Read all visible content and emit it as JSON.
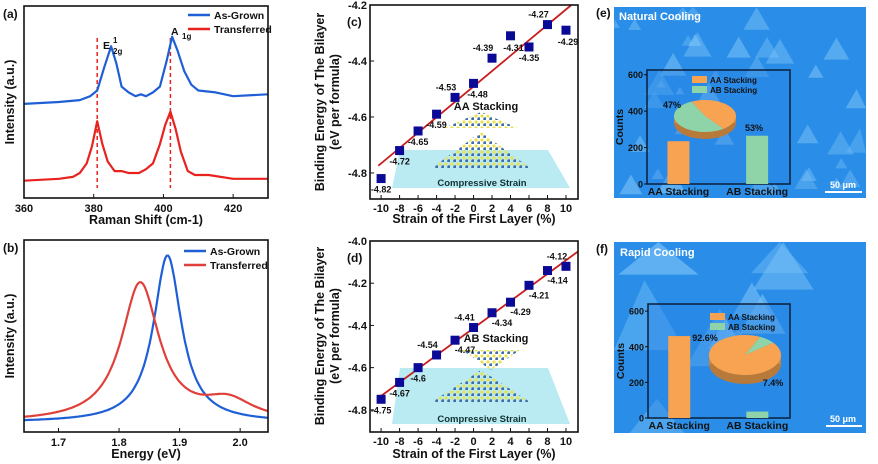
{
  "chart_data": [
    {
      "panel": "(a)",
      "type": "line",
      "xlabel": "Raman Shift (cm-1)",
      "ylabel": "Intensity (a.u.)",
      "xlim": [
        360,
        430
      ],
      "ylim": [
        0,
        1
      ],
      "xticks": [
        "360",
        "380",
        "400",
        "420"
      ],
      "peak_labels": {
        "e2g": "E",
        "e2g_sup": "1",
        "e2g_sub": "2g",
        "a1g": "A",
        "a1g_sub": "1g"
      },
      "reference_lines_x": [
        381,
        402
      ],
      "legend": [
        "As-Grown",
        "Transferred"
      ],
      "legend_position": "top-right",
      "series": [
        {
          "name": "As-Grown",
          "color": "#1f5fd6",
          "x": [
            360,
            370,
            376,
            379,
            381,
            383,
            385,
            386.5,
            388,
            390,
            392,
            393.5,
            395,
            397,
            399,
            401,
            402.5,
            404,
            406,
            408,
            410,
            415,
            420,
            430
          ],
          "y": [
            0.49,
            0.5,
            0.51,
            0.53,
            0.56,
            0.68,
            0.79,
            0.7,
            0.58,
            0.55,
            0.53,
            0.54,
            0.53,
            0.55,
            0.58,
            0.72,
            0.84,
            0.77,
            0.66,
            0.59,
            0.56,
            0.55,
            0.53,
            0.54
          ]
        },
        {
          "name": "Transferred",
          "color": "#e8231f",
          "x": [
            360,
            370,
            374,
            376,
            378,
            379.5,
            381,
            382.5,
            384,
            386,
            388,
            390,
            393,
            395,
            397,
            399,
            400.5,
            402,
            403.5,
            405,
            407,
            409,
            413,
            420,
            430
          ],
          "y": [
            0.09,
            0.1,
            0.11,
            0.13,
            0.18,
            0.27,
            0.4,
            0.28,
            0.19,
            0.14,
            0.14,
            0.13,
            0.13,
            0.15,
            0.18,
            0.28,
            0.38,
            0.45,
            0.36,
            0.24,
            0.14,
            0.12,
            0.12,
            0.1,
            0.1
          ]
        }
      ]
    },
    {
      "panel": "(b)",
      "type": "line",
      "xlabel": "Energy (eV)",
      "ylabel": "Intensity (a.u.)",
      "xlim": [
        1.643,
        2.046
      ],
      "ylim": [
        0,
        1
      ],
      "xticks": [
        "1.7",
        "1.8",
        "1.9",
        "2.0"
      ],
      "legend": [
        "As-Grown",
        "Transferred"
      ],
      "legend_position": "top-right",
      "series": [
        {
          "name": "As-Grown",
          "color": "#1f5fd6",
          "baseline": 0.05,
          "peaks": [
            {
              "center": 1.88,
              "width": 0.028,
              "height": 0.87
            }
          ]
        },
        {
          "name": "Transferred",
          "color": "#e0403a",
          "baseline": 0.05,
          "peaks": [
            {
              "center": 1.835,
              "width": 0.038,
              "height": 0.72
            },
            {
              "center": 1.98,
              "width": 0.05,
              "height": 0.1
            }
          ]
        }
      ]
    },
    {
      "panel": "(c)",
      "type": "scatter",
      "xlabel": "Strain of the First Layer (%)",
      "ylabel": "Binding Energy of The Bilayer",
      "ylabel2": "(eV per formula)",
      "xlim": [
        -11.2,
        11.3
      ],
      "ylim": [
        -4.893,
        -4.2
      ],
      "xticks": [
        -10,
        -8,
        -6,
        -4,
        -2,
        0,
        2,
        4,
        6,
        8,
        10
      ],
      "yticks": [
        -4.8,
        -4.6,
        -4.4,
        -4.2
      ],
      "x": [
        -10,
        -8,
        -6,
        -4,
        -2,
        0,
        2,
        4,
        6,
        8,
        10
      ],
      "y": [
        -4.82,
        -4.72,
        -4.65,
        -4.59,
        -4.53,
        -4.48,
        -4.39,
        -4.31,
        -4.35,
        -4.27,
        -4.29
      ],
      "labels": [
        "-4.82",
        "-4.72",
        "-4.65",
        "-4.59",
        "-4.53",
        "-4.48",
        "-4.39",
        "-4.31",
        "-4.35",
        "-4.27",
        "-4.29"
      ],
      "fit": "linear",
      "marker_color": "#0a0a96",
      "fit_color": "#c81e1e",
      "annotation": "AA Stacking",
      "inset_caption": "Compressive Strain"
    },
    {
      "panel": "(d)",
      "type": "scatter",
      "xlabel": "Strain of the First Layer (%)",
      "ylabel": "Binding Energy of The Bilayer",
      "ylabel2": "(eV per formula)",
      "xlim": [
        -11.2,
        11.3
      ],
      "ylim": [
        -4.905,
        -4.0
      ],
      "xticks": [
        -10,
        -8,
        -6,
        -4,
        -2,
        0,
        2,
        4,
        6,
        8,
        10
      ],
      "yticks": [
        -4.8,
        -4.6,
        -4.4,
        -4.2,
        -4.0
      ],
      "x": [
        -10,
        -8,
        -6,
        -4,
        -2,
        0,
        2,
        4,
        6,
        8,
        10
      ],
      "y": [
        -4.75,
        -4.67,
        -4.6,
        -4.54,
        -4.47,
        -4.41,
        -4.34,
        -4.29,
        -4.21,
        -4.14,
        -4.12
      ],
      "labels": [
        "-4.75",
        "-4.67",
        "-4.6",
        "-4.54",
        "-4.47",
        "-4.41",
        "-4.34",
        "-4.29",
        "-4.21",
        "-4.14",
        "-4.12"
      ],
      "fit": "linear",
      "marker_color": "#0a0a96",
      "fit_color": "#c81e1e",
      "annotation": "AB Stacking",
      "inset_caption": "Compressive Strain"
    },
    {
      "panel": "(e)",
      "type": "bar",
      "title": "Natural Cooling",
      "scale_bar": "50 μm",
      "ylabel": "Counts",
      "ylim": [
        0,
        626
      ],
      "yticks": [
        0,
        200,
        400,
        600
      ],
      "categories": [
        "AA Stacking",
        "AB Stacking"
      ],
      "values": [
        235,
        265
      ],
      "colors": [
        "#f7a352",
        "#8fd3a8"
      ],
      "pie": {
        "labels": [
          "AA Stacking",
          "AB Stacking"
        ],
        "percent": [
          47,
          53
        ],
        "percent_labels": [
          "47%",
          "53%"
        ]
      }
    },
    {
      "panel": "(f)",
      "type": "bar",
      "title": "Rapid Cooling",
      "scale_bar": "50 μm",
      "ylabel": "Counts",
      "ylim": [
        0,
        640
      ],
      "yticks": [
        0,
        200,
        400,
        600
      ],
      "categories": [
        "AA Stacking",
        "AB Stacking"
      ],
      "values": [
        460,
        36
      ],
      "colors": [
        "#f7a352",
        "#8fd3a8"
      ],
      "pie": {
        "labels": [
          "AA Stacking",
          "AB Stacking"
        ],
        "percent": [
          92.6,
          7.4
        ],
        "percent_labels": [
          "92.6%",
          "7.4%"
        ]
      }
    }
  ]
}
